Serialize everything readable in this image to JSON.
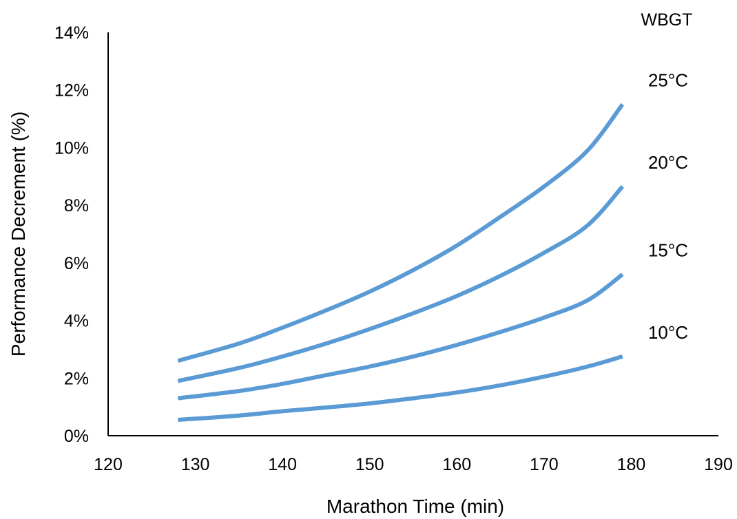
{
  "chart_data": {
    "type": "line",
    "title": "",
    "xlabel": "Marathon Time (min)",
    "ylabel": "Performance Decrement  (%)",
    "xlim": [
      120,
      190
    ],
    "ylim": [
      0,
      14
    ],
    "x_ticks": [
      "120",
      "130",
      "140",
      "150",
      "160",
      "170",
      "180",
      "190"
    ],
    "y_ticks": [
      "0%",
      "2%",
      "4%",
      "6%",
      "8%",
      "10%",
      "12%",
      "14%"
    ],
    "grid": false,
    "legend_title": "WBGT",
    "line_color": "#5b9bd5",
    "series": [
      {
        "name": "25°C",
        "x": [
          128,
          135,
          140,
          145,
          150,
          155,
          160,
          165,
          170,
          175,
          179
        ],
        "y": [
          2.6,
          3.2,
          3.75,
          4.35,
          5.0,
          5.75,
          6.6,
          7.6,
          8.65,
          9.9,
          11.5
        ]
      },
      {
        "name": "20°C",
        "x": [
          128,
          135,
          140,
          145,
          150,
          155,
          160,
          165,
          170,
          175,
          179
        ],
        "y": [
          1.9,
          2.35,
          2.75,
          3.2,
          3.7,
          4.25,
          4.85,
          5.55,
          6.35,
          7.3,
          8.65
        ]
      },
      {
        "name": "15°C",
        "x": [
          128,
          135,
          140,
          145,
          150,
          155,
          160,
          165,
          170,
          175,
          179
        ],
        "y": [
          1.3,
          1.55,
          1.8,
          2.1,
          2.4,
          2.75,
          3.15,
          3.6,
          4.1,
          4.7,
          5.6
        ]
      },
      {
        "name": "10°C",
        "x": [
          128,
          135,
          140,
          145,
          150,
          155,
          160,
          165,
          170,
          175,
          179
        ],
        "y": [
          0.55,
          0.7,
          0.85,
          0.98,
          1.12,
          1.3,
          1.5,
          1.75,
          2.05,
          2.4,
          2.75
        ]
      }
    ]
  }
}
